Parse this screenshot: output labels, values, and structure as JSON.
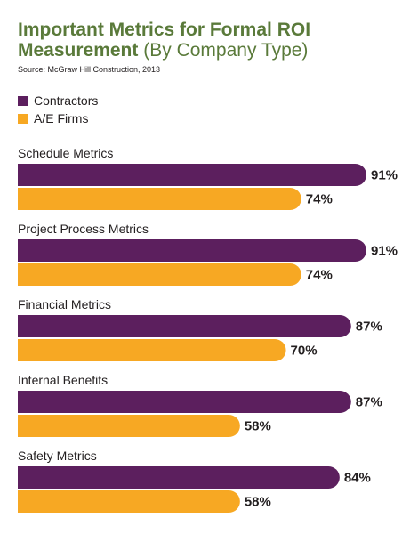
{
  "title_bold_line1": "Important Metrics for Formal ROI",
  "title_bold_line2": "Measurement",
  "title_regular": "(By Company Type)",
  "source": "Source: McGraw Hill Construction, 2013",
  "colors": {
    "contractors": "#5c1f5e",
    "ae_firms": "#f7a823",
    "title": "#5a7a3a"
  },
  "chart_data": {
    "type": "bar",
    "orientation": "horizontal",
    "categories": [
      "Schedule Metrics",
      "Project Process Metrics",
      "Financial Metrics",
      "Internal Benefits",
      "Safety Metrics"
    ],
    "series": [
      {
        "name": "Contractors",
        "values": [
          91,
          91,
          87,
          87,
          84
        ],
        "labels": [
          "91%",
          "91%",
          "87%",
          "87%",
          "84%"
        ]
      },
      {
        "name": "A/E Firms",
        "values": [
          74,
          74,
          70,
          58,
          58
        ],
        "labels": [
          "74%",
          "74%",
          "70%",
          "58%",
          "58%"
        ]
      }
    ],
    "unit": "%",
    "xlim": [
      0,
      100
    ],
    "legend": "top-left",
    "grid": false
  }
}
